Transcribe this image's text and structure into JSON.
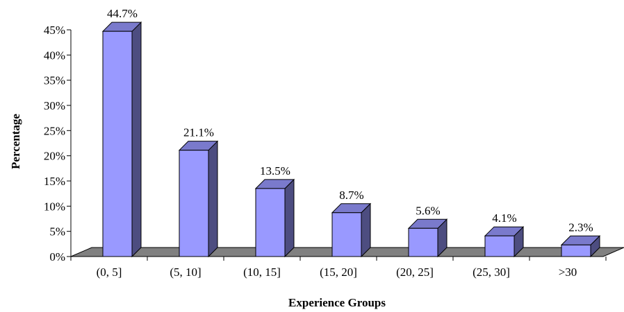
{
  "chart_data": {
    "type": "bar",
    "title": "",
    "xlabel": "Experience Groups",
    "ylabel": "Percentage",
    "categories": [
      "(0, 5]",
      "(5, 10]",
      "(10, 15]",
      "(15, 20]",
      "(20, 25]",
      "(25, 30]",
      ">30"
    ],
    "values": [
      44.7,
      21.1,
      13.5,
      8.7,
      5.6,
      4.1,
      2.3
    ],
    "data_labels": [
      "44.7%",
      "21.1%",
      "13.5%",
      "8.7%",
      "5.6%",
      "4.1%",
      "2.3%"
    ],
    "ylim": [
      0,
      45
    ],
    "yticks": [
      0,
      5,
      10,
      15,
      20,
      25,
      30,
      35,
      40,
      45
    ],
    "ytick_labels": [
      "0%",
      "5%",
      "10%",
      "15%",
      "20%",
      "25%",
      "30%",
      "35%",
      "40%",
      "45%"
    ],
    "grid": false,
    "legend": "none",
    "style": "3d",
    "colors": {
      "bar_front": "#9999ff",
      "bar_top": "#7a7acc",
      "bar_side": "#4d4d80",
      "floor": "#808080",
      "axis": "#000000"
    }
  }
}
